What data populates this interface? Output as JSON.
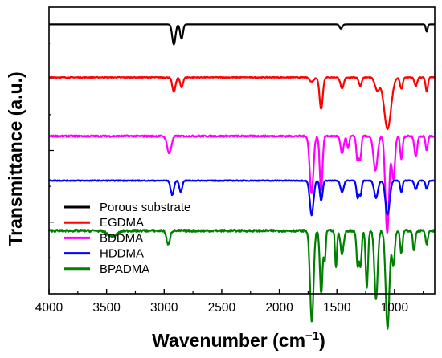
{
  "chart_data": {
    "type": "line",
    "title": "",
    "xlabel": "Wavenumber (cm",
    "xlabel_sup": "−1",
    "xlabel_close": ")",
    "ylabel": "Transmittance (a.u.)",
    "xlim": [
      4000,
      650
    ],
    "x_reversed": true,
    "y_ticks_labeled": false,
    "grid": false,
    "legend_position": "bottom-left",
    "x_ticks": [
      {
        "value": 4000,
        "label": "4000"
      },
      {
        "value": 3500,
        "label": "3500"
      },
      {
        "value": 3000,
        "label": "3000"
      },
      {
        "value": 2500,
        "label": "2500"
      },
      {
        "value": 2000,
        "label": "2000"
      },
      {
        "value": 1500,
        "label": "1500"
      },
      {
        "value": 1000,
        "label": "1000"
      }
    ],
    "series": [
      {
        "name": "Porous substrate",
        "color": "#000000",
        "baseline": 0.94,
        "noise": 0.0,
        "peaks": [
          [
            2916,
            0.07,
            14
          ],
          [
            2849,
            0.05,
            12
          ],
          [
            1465,
            0.015,
            12
          ],
          [
            720,
            0.025,
            8
          ]
        ]
      },
      {
        "name": "EGDMA",
        "color": "#ff0000",
        "baseline": 0.755,
        "noise": 0.0015,
        "peaks": [
          [
            2916,
            0.05,
            14
          ],
          [
            2849,
            0.035,
            12
          ],
          [
            1718,
            0.015,
            18
          ],
          [
            1637,
            0.11,
            14
          ],
          [
            1455,
            0.04,
            14
          ],
          [
            1297,
            0.03,
            12
          ],
          [
            1150,
            0.045,
            20
          ],
          [
            1060,
            0.18,
            30
          ],
          [
            940,
            0.04,
            12
          ],
          [
            815,
            0.03,
            12
          ],
          [
            720,
            0.05,
            10
          ]
        ]
      },
      {
        "name": "BDDMA",
        "color": "#ff00ff",
        "baseline": 0.55,
        "noise": 0.003,
        "peaks": [
          [
            2956,
            0.06,
            18
          ],
          [
            1720,
            0.2,
            16
          ],
          [
            1637,
            0.19,
            12
          ],
          [
            1455,
            0.06,
            14
          ],
          [
            1403,
            0.04,
            10
          ],
          [
            1322,
            0.08,
            10
          ],
          [
            1298,
            0.08,
            10
          ],
          [
            1165,
            0.12,
            18
          ],
          [
            1063,
            0.34,
            16
          ],
          [
            1010,
            0.15,
            14
          ],
          [
            940,
            0.08,
            10
          ],
          [
            815,
            0.07,
            12
          ],
          [
            720,
            0.05,
            10
          ]
        ]
      },
      {
        "name": "HDDMA",
        "color": "#0000ff",
        "baseline": 0.395,
        "noise": 0.0015,
        "peaks": [
          [
            2930,
            0.05,
            14
          ],
          [
            2856,
            0.04,
            12
          ],
          [
            1719,
            0.12,
            16
          ],
          [
            1636,
            0.07,
            12
          ],
          [
            1455,
            0.04,
            14
          ],
          [
            1320,
            0.06,
            10
          ],
          [
            1295,
            0.05,
            10
          ],
          [
            1160,
            0.06,
            16
          ],
          [
            1060,
            0.12,
            18
          ],
          [
            940,
            0.04,
            10
          ],
          [
            815,
            0.03,
            12
          ],
          [
            720,
            0.03,
            10
          ]
        ]
      },
      {
        "name": "BPADMA",
        "color": "#008000",
        "baseline": 0.22,
        "noise": 0.004,
        "peaks": [
          [
            3450,
            0.02,
            40
          ],
          [
            2965,
            0.05,
            14
          ],
          [
            1718,
            0.32,
            15
          ],
          [
            1636,
            0.22,
            12
          ],
          [
            1605,
            0.1,
            8
          ],
          [
            1508,
            0.13,
            8
          ],
          [
            1455,
            0.08,
            14
          ],
          [
            1320,
            0.12,
            10
          ],
          [
            1295,
            0.12,
            10
          ],
          [
            1240,
            0.2,
            10
          ],
          [
            1160,
            0.24,
            14
          ],
          [
            1060,
            0.34,
            16
          ],
          [
            1010,
            0.12,
            12
          ],
          [
            940,
            0.08,
            10
          ],
          [
            830,
            0.07,
            10
          ],
          [
            720,
            0.05,
            10
          ]
        ]
      }
    ]
  }
}
